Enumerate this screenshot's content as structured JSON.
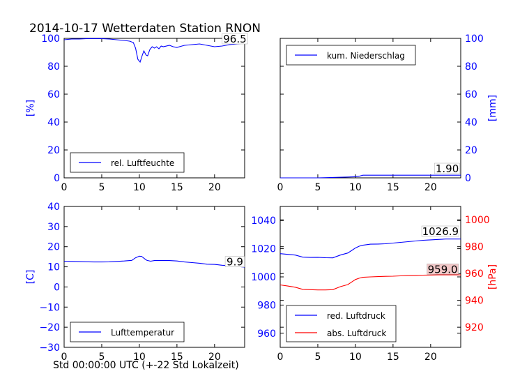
{
  "figure": {
    "title": "2014-10-17 Wetterdaten Station RNON",
    "xcaption": "Std 00:00:00 UTC (+-22 Std Lokalzeit)"
  },
  "colors": {
    "primary": "#0000ff",
    "secondary": "#ff0000",
    "axis": "#000000"
  },
  "chart_data": [
    {
      "type": "line",
      "panel": "top-left",
      "ylabel": "[%]",
      "xlim": [
        0,
        24
      ],
      "ylim": [
        0,
        100
      ],
      "xticks": [
        0,
        5,
        10,
        15,
        20
      ],
      "yticks": [
        0,
        20,
        40,
        60,
        80,
        100
      ],
      "yaxis_side": "left",
      "tick_color": "#0000ff",
      "legend": {
        "placement": "lower-left",
        "entries": [
          "rel. Luftfeuchte"
        ]
      },
      "annotation": {
        "text": "96.5",
        "x": 22.7,
        "y": 97.5,
        "box_fill": "#ffffff"
      },
      "series": [
        {
          "name": "rel. Luftfeuchte",
          "color": "#0000ff",
          "x": [
            0,
            1,
            2,
            3,
            4,
            5,
            6,
            7,
            8,
            8.7,
            9.2,
            9.5,
            9.8,
            10.1,
            10.4,
            10.6,
            10.9,
            11.1,
            11.4,
            11.7,
            12,
            12.3,
            12.6,
            12.9,
            13.2,
            14,
            14.5,
            15,
            16,
            17,
            18,
            19,
            20,
            21,
            22,
            23,
            24
          ],
          "y": [
            99,
            99.5,
            99.5,
            99.8,
            99.8,
            99.8,
            99.5,
            99,
            98.5,
            98,
            97,
            93,
            85,
            83,
            88,
            91,
            88,
            87.5,
            92,
            94,
            93,
            94,
            92.5,
            94.5,
            94,
            95,
            94,
            93.5,
            95,
            95.5,
            96,
            95,
            94,
            94.5,
            95.5,
            96,
            96.5
          ]
        }
      ]
    },
    {
      "type": "line",
      "panel": "top-right",
      "ylabel": "[mm]",
      "xlim": [
        0,
        24
      ],
      "ylim": [
        0,
        100
      ],
      "xticks": [
        0,
        5,
        10,
        15,
        20
      ],
      "yticks": [
        0,
        20,
        40,
        60,
        80,
        100
      ],
      "yaxis_side": "right",
      "tick_color": "#0000ff",
      "legend": {
        "placement": "upper-left",
        "entries": [
          "kum. Niederschlag"
        ]
      },
      "annotation": {
        "text": "1.90",
        "x": 22.2,
        "y": 4.5,
        "box_fill": "#ffffff"
      },
      "series": [
        {
          "name": "kum. Niederschlag",
          "color": "#0000ff",
          "x": [
            0,
            5,
            7,
            9,
            10,
            10.5,
            11,
            12,
            15,
            20,
            24
          ],
          "y": [
            0,
            0,
            0.3,
            0.6,
            0.8,
            1.2,
            1.9,
            1.9,
            1.9,
            1.9,
            1.9
          ]
        }
      ]
    },
    {
      "type": "line",
      "panel": "bottom-left",
      "ylabel": "[C]",
      "xlim": [
        0,
        24
      ],
      "ylim": [
        -30,
        40
      ],
      "xticks": [
        0,
        5,
        10,
        15,
        20
      ],
      "yticks": [
        -30,
        -20,
        -10,
        0,
        10,
        20,
        30,
        40
      ],
      "yaxis_side": "left",
      "tick_color": "#0000ff",
      "legend": {
        "placement": "lower-left",
        "entries": [
          "Lufttemperatur"
        ]
      },
      "annotation": {
        "text": "9.9",
        "x": 22.7,
        "y": 11,
        "box_fill": "#ffffff"
      },
      "series": [
        {
          "name": "Lufttemperatur",
          "color": "#0000ff",
          "x": [
            0,
            1,
            2,
            3,
            4,
            5,
            6,
            7,
            8,
            9,
            9.5,
            10,
            10.3,
            10.7,
            11,
            11.5,
            12,
            13,
            14,
            15,
            16,
            17,
            18,
            19,
            20,
            21,
            22,
            23,
            24
          ],
          "y": [
            12.8,
            12.7,
            12.6,
            12.5,
            12.4,
            12.4,
            12.5,
            12.7,
            12.9,
            13.2,
            14.5,
            15.3,
            15.2,
            14,
            13.2,
            12.8,
            13.1,
            13.1,
            13.1,
            12.9,
            12.4,
            12.1,
            11.8,
            11.3,
            11.2,
            10.8,
            10.6,
            10.2,
            9.9
          ]
        }
      ]
    },
    {
      "type": "line",
      "panel": "bottom-right",
      "ylabel": "[hPa]",
      "xlim": [
        0,
        24
      ],
      "ylim_left": [
        950,
        1050
      ],
      "ylim_right": [
        905,
        1010
      ],
      "xticks": [
        0,
        5,
        10,
        15,
        20
      ],
      "yticks_left": [
        960,
        980,
        1000,
        1020,
        1040
      ],
      "yticks_right": [
        920,
        940,
        960,
        980,
        1000
      ],
      "legend": {
        "placement": "lower-left",
        "entries": [
          "red. Luftdruck",
          "abs. Luftdruck"
        ]
      },
      "annotations": [
        {
          "text": "1026.9",
          "x": 21.3,
          "y": 1030.2,
          "axis": "left",
          "box_fill": "#ffffff"
        },
        {
          "text": "959.0",
          "x": 21.6,
          "y": 961,
          "axis": "right",
          "box_fill": "#f2c8c8"
        }
      ],
      "series": [
        {
          "name": "red. Luftdruck",
          "color": "#0000ff",
          "axis": "left",
          "x": [
            0,
            1,
            2,
            3,
            4,
            5,
            6,
            7,
            8,
            9,
            10,
            10.5,
            11,
            12,
            13,
            14,
            15,
            16,
            17,
            18,
            19,
            20,
            21,
            22,
            23,
            24
          ],
          "y": [
            1016.5,
            1016,
            1015.5,
            1014,
            1013.8,
            1013.9,
            1013.6,
            1013.5,
            1015.5,
            1017,
            1020.5,
            1021.8,
            1022.5,
            1023.2,
            1023.3,
            1023.5,
            1024,
            1024.5,
            1025,
            1025.5,
            1026,
            1026.3,
            1026.6,
            1026.9,
            1026.9,
            1026.9
          ]
        },
        {
          "name": "abs. Luftdruck",
          "color": "#ff0000",
          "axis": "right",
          "x": [
            0,
            1,
            2,
            3,
            4,
            5,
            6,
            7,
            8,
            9,
            10,
            10.5,
            11,
            12,
            13,
            14,
            15,
            16,
            17,
            18,
            19,
            20,
            21,
            22,
            23,
            24
          ],
          "y": [
            951.5,
            950.7,
            949.8,
            948.2,
            948,
            947.8,
            947.8,
            948,
            950.2,
            951.8,
            955.5,
            956.5,
            957.2,
            957.5,
            957.7,
            957.9,
            958,
            958.3,
            958.5,
            958.6,
            958.8,
            958.9,
            959,
            959,
            959,
            959
          ]
        }
      ]
    }
  ]
}
